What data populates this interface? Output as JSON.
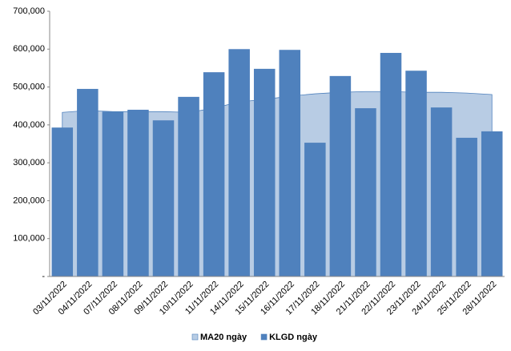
{
  "chart_data": {
    "type": "bar",
    "categories": [
      "03/11/2022",
      "04/11/2022",
      "07/11/2022",
      "08/11/2022",
      "09/11/2022",
      "10/11/2022",
      "11/11/2022",
      "14/11/2022",
      "15/11/2022",
      "16/11/2022",
      "17/11/2022",
      "18/11/2022",
      "21/11/2022",
      "22/11/2022",
      "23/11/2022",
      "24/11/2022",
      "25/11/2022",
      "28/11/2022"
    ],
    "series": [
      {
        "name": "MA20 ngày",
        "type": "area",
        "color": "#b8cce4",
        "values": [
          433000,
          438000,
          435000,
          435000,
          435000,
          433000,
          444000,
          461000,
          467000,
          476000,
          482000,
          486000,
          488000,
          488000,
          486000,
          486000,
          484000,
          480000
        ]
      },
      {
        "name": "KLGD ngày",
        "type": "bar",
        "color": "#4f81bd",
        "values": [
          393000,
          495000,
          435000,
          440000,
          412000,
          474000,
          539000,
          600000,
          548000,
          598000,
          353000,
          529000,
          444000,
          590000,
          543000,
          446000,
          366000,
          383000
        ]
      }
    ],
    "ylim": [
      0,
      700000
    ],
    "yticks": [
      {
        "value": 0,
        "label": "-"
      },
      {
        "value": 100000,
        "label": "100,000"
      },
      {
        "value": 200000,
        "label": "200,000"
      },
      {
        "value": 300000,
        "label": "300,000"
      },
      {
        "value": 400000,
        "label": "400,000"
      },
      {
        "value": 500000,
        "label": "500,000"
      },
      {
        "value": 600000,
        "label": "600,000"
      },
      {
        "value": 700000,
        "label": "700,000"
      }
    ],
    "grid": false,
    "legend": "bottom"
  }
}
